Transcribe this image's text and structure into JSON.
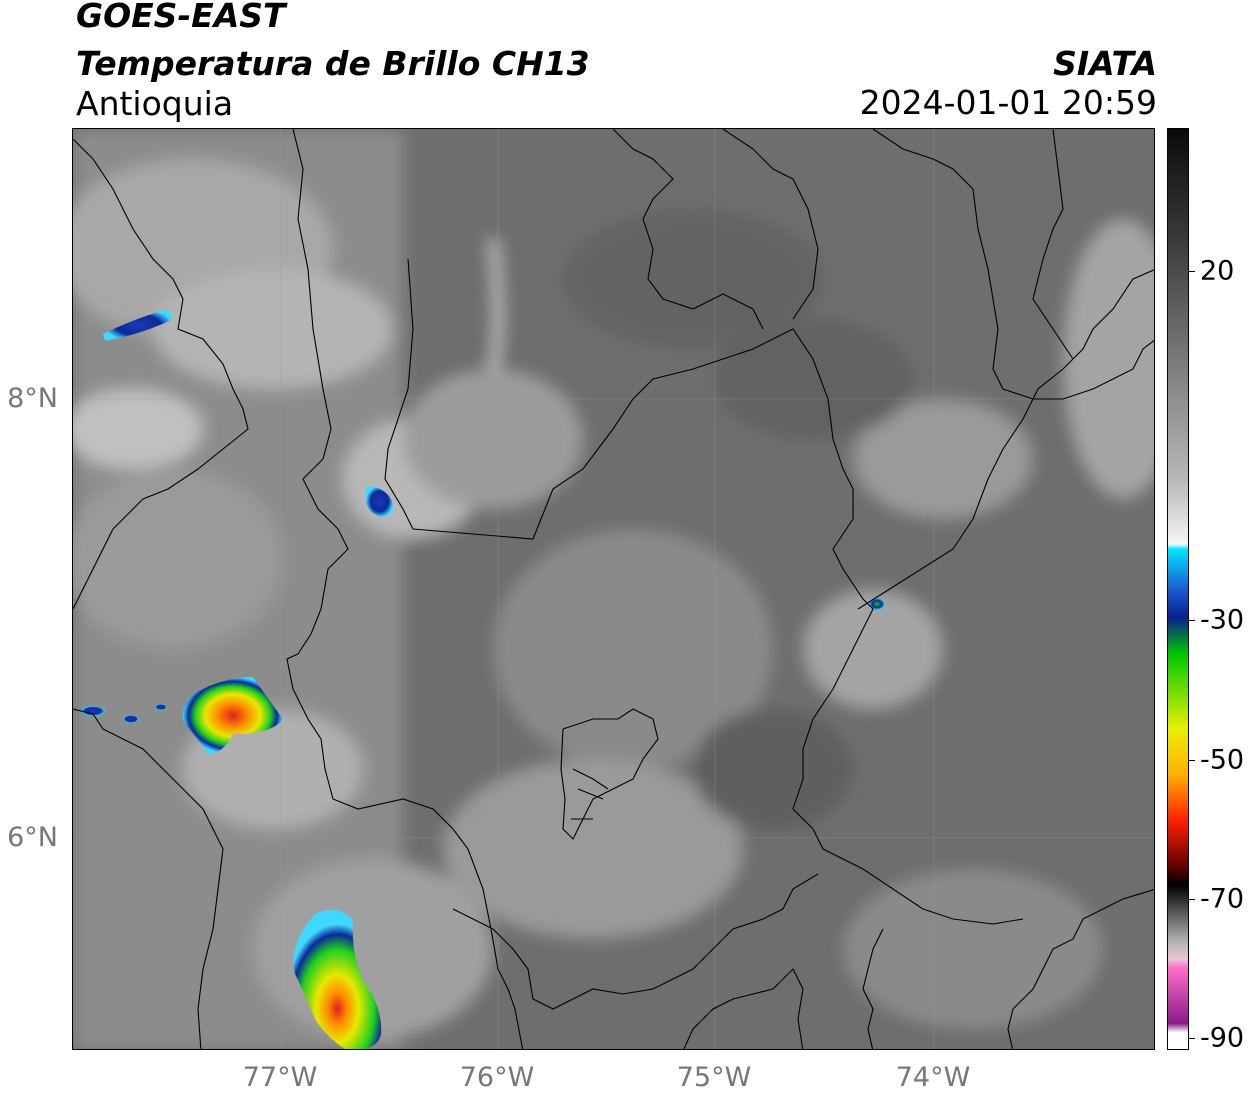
{
  "header": {
    "satellite": "GOES-EAST",
    "product": "Temperatura de Brillo CH13",
    "region": "Antioquia",
    "organization": "SIATA",
    "timestamp": "2024-01-01 20:59"
  },
  "map": {
    "latitude_labels": [
      "8°N",
      "6°N"
    ],
    "longitude_labels": [
      "77°W",
      "76°W",
      "75°W",
      "74°W"
    ]
  },
  "colorbar": {
    "tick_labels": [
      "20",
      "-30",
      "-50",
      "-70",
      "-90"
    ],
    "colors": {
      "warm_gray_top": "#0a0a0a",
      "mid_gray": "#888888",
      "light": "#f5f5f5",
      "cyan": "#00e5ff",
      "dark_blue": "#0a1f8c",
      "green": "#00c800",
      "yellow": "#f0f000",
      "orange": "#ff9900",
      "red": "#e00000",
      "dark_red": "#600000",
      "black": "#000000",
      "pink": "#ff6ec7",
      "purple": "#8a1a8a"
    }
  }
}
